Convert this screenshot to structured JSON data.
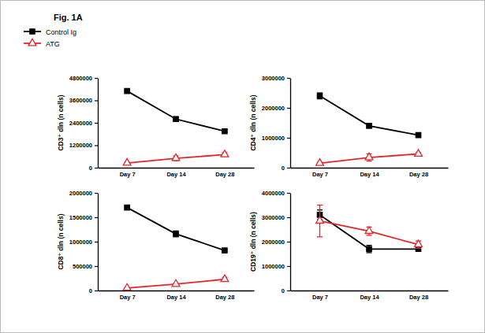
{
  "figure": {
    "label": "Fig. 1A"
  },
  "chart_data": [
    {
      "type": "line",
      "y_label": "CD3⁺ dln (n cells)",
      "categories": [
        "Day 7",
        "Day 14",
        "Day 28"
      ],
      "ylim": [
        0,
        4800000
      ],
      "yticks": [
        0,
        1200000,
        2400000,
        3600000,
        4800000
      ],
      "legend": "top-left",
      "series": [
        {
          "name": "Control Ig",
          "color": "#000000",
          "marker": "square",
          "values": [
            4100000,
            2600000,
            1950000
          ],
          "errors": [
            60000,
            120000,
            60000
          ]
        },
        {
          "name": "ATG",
          "color": "#e3262b",
          "marker": "triangle-open",
          "values": [
            250000,
            500000,
            700000
          ],
          "errors": [
            40000,
            130000,
            100000
          ]
        }
      ]
    },
    {
      "type": "line",
      "y_label": "CD4⁺ dln (n cells)",
      "categories": [
        "Day 7",
        "Day 14",
        "Day 28"
      ],
      "ylim": [
        0,
        3000000
      ],
      "yticks": [
        0,
        1000000,
        2000000,
        3000000
      ],
      "series": [
        {
          "name": "Control Ig",
          "color": "#000000",
          "marker": "square",
          "values": [
            2400000,
            1400000,
            1090000
          ],
          "errors": [
            100000,
            80000,
            40000
          ]
        },
        {
          "name": "ATG",
          "color": "#e3262b",
          "marker": "triangle-open",
          "values": [
            150000,
            340000,
            460000
          ],
          "errors": [
            30000,
            120000,
            40000
          ]
        }
      ]
    },
    {
      "type": "line",
      "y_label": "CD8⁺ dln (n cells)",
      "categories": [
        "Day 7",
        "Day 14",
        "Day 28"
      ],
      "ylim": [
        0,
        2000000
      ],
      "yticks": [
        0,
        500000,
        1000000,
        1500000,
        2000000
      ],
      "series": [
        {
          "name": "Control Ig",
          "color": "#000000",
          "marker": "square",
          "values": [
            1700000,
            1160000,
            820000
          ],
          "errors": [
            20000,
            60000,
            20000
          ]
        },
        {
          "name": "ATG",
          "color": "#e3262b",
          "marker": "triangle-open",
          "values": [
            50000,
            130000,
            230000
          ],
          "errors": [
            10000,
            15000,
            40000
          ]
        }
      ]
    },
    {
      "type": "line",
      "y_label": "CD19⁺ dln (n cells)",
      "categories": [
        "Day 7",
        "Day 14",
        "Day 28"
      ],
      "ylim": [
        0,
        4000000
      ],
      "yticks": [
        0,
        1000000,
        2000000,
        3000000,
        4000000
      ],
      "series": [
        {
          "name": "Control Ig",
          "color": "#000000",
          "marker": "square",
          "values": [
            3100000,
            1700000,
            1700000
          ],
          "errors": [
            200000,
            150000,
            50000
          ]
        },
        {
          "name": "ATG",
          "color": "#e3262b",
          "marker": "triangle-open",
          "values": [
            2850000,
            2430000,
            1880000
          ],
          "errors": [
            650000,
            170000,
            150000
          ]
        }
      ]
    }
  ]
}
